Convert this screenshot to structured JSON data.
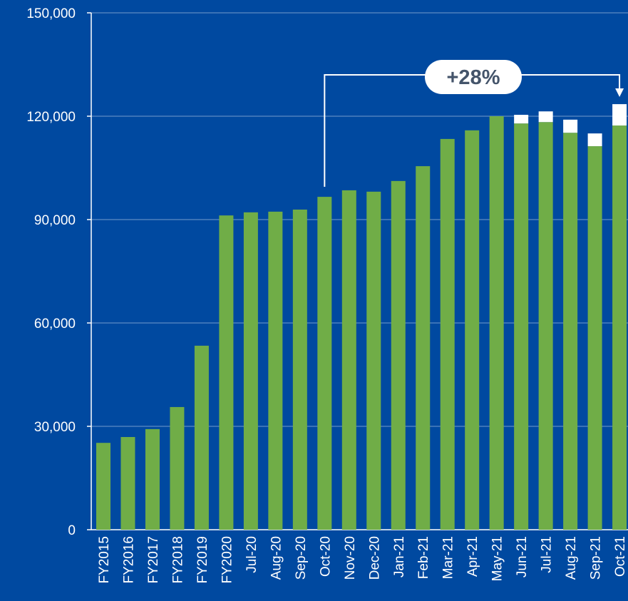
{
  "chart_data": {
    "type": "stacked_bar",
    "annotation": "+28%",
    "categories": [
      "FY2015",
      "FY2016",
      "FY2017",
      "FY2018",
      "FY2019",
      "FY2020",
      "Jul-20",
      "Aug-20",
      "Sep-20",
      "Oct-20",
      "Nov-20",
      "Dec-20",
      "Jan-21",
      "Feb-21",
      "Mar-21",
      "Apr-21",
      "May-21",
      "Jun-21",
      "Jul-21",
      "Aug-21",
      "Sep-21",
      "Oct-21"
    ],
    "series": [
      {
        "color": "#70ad47",
        "values": [
          25200,
          26900,
          29200,
          35600,
          53400,
          91200,
          92100,
          92300,
          92900,
          96600,
          98500,
          98100,
          101200,
          105500,
          113400,
          115900,
          120000,
          117900,
          118300,
          115200,
          111300,
          117300
        ]
      },
      {
        "color": "#ffffff",
        "values": [
          null,
          null,
          null,
          null,
          null,
          null,
          null,
          null,
          null,
          null,
          null,
          null,
          null,
          null,
          null,
          null,
          null,
          2500,
          3100,
          3800,
          3700,
          6200
        ]
      }
    ],
    "ylim": [
      0,
      150000
    ],
    "yticks": [
      0,
      {
        "value": 30000,
        "label": "30,000"
      },
      {
        "value": 60000,
        "label": "60,000"
      },
      {
        "value": 90000,
        "label": "90,000"
      },
      {
        "value": 120000,
        "label": "120,000"
      },
      {
        "value": 150000,
        "label": "150,000"
      }
    ],
    "grid": true,
    "background": "#0049a0"
  }
}
